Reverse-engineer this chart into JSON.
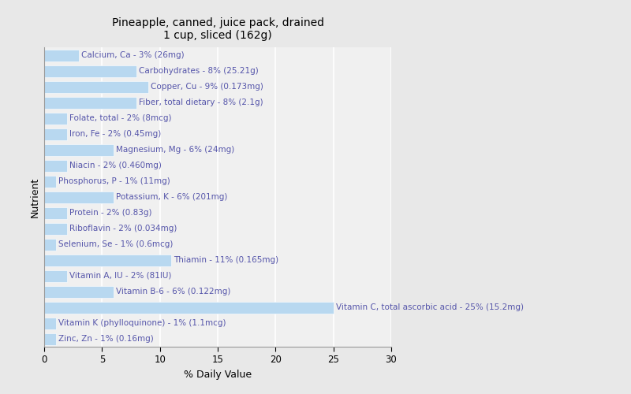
{
  "title_line1": "Pineapple, canned, juice pack, drained",
  "title_line2": "1 cup, sliced (162g)",
  "xlabel": "% Daily Value",
  "ylabel": "Nutrient",
  "xlim": [
    0,
    30
  ],
  "xticks": [
    0,
    5,
    10,
    15,
    20,
    25,
    30
  ],
  "background_color": "#e8e8e8",
  "plot_background_color": "#f0f0f0",
  "bar_color": "#b8d8f0",
  "bar_edge_color": "#ffffff",
  "text_color": "#5555aa",
  "nutrients": [
    {
      "label": "Calcium, Ca - 3% (26mg)",
      "value": 3
    },
    {
      "label": "Carbohydrates - 8% (25.21g)",
      "value": 8
    },
    {
      "label": "Copper, Cu - 9% (0.173mg)",
      "value": 9
    },
    {
      "label": "Fiber, total dietary - 8% (2.1g)",
      "value": 8
    },
    {
      "label": "Folate, total - 2% (8mcg)",
      "value": 2
    },
    {
      "label": "Iron, Fe - 2% (0.45mg)",
      "value": 2
    },
    {
      "label": "Magnesium, Mg - 6% (24mg)",
      "value": 6
    },
    {
      "label": "Niacin - 2% (0.460mg)",
      "value": 2
    },
    {
      "label": "Phosphorus, P - 1% (11mg)",
      "value": 1
    },
    {
      "label": "Potassium, K - 6% (201mg)",
      "value": 6
    },
    {
      "label": "Protein - 2% (0.83g)",
      "value": 2
    },
    {
      "label": "Riboflavin - 2% (0.034mg)",
      "value": 2
    },
    {
      "label": "Selenium, Se - 1% (0.6mcg)",
      "value": 1
    },
    {
      "label": "Thiamin - 11% (0.165mg)",
      "value": 11
    },
    {
      "label": "Vitamin A, IU - 2% (81IU)",
      "value": 2
    },
    {
      "label": "Vitamin B-6 - 6% (0.122mg)",
      "value": 6
    },
    {
      "label": "Vitamin C, total ascorbic acid - 25% (15.2mg)",
      "value": 25
    },
    {
      "label": "Vitamin K (phylloquinone) - 1% (1.1mcg)",
      "value": 1
    },
    {
      "label": "Zinc, Zn - 1% (0.16mg)",
      "value": 1
    }
  ],
  "title_fontsize": 10,
  "axis_label_fontsize": 9,
  "tick_fontsize": 8.5,
  "bar_label_fontsize": 7.5
}
